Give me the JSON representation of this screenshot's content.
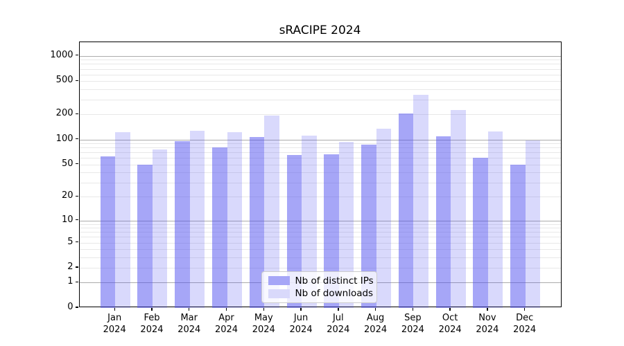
{
  "title": "sRACIPE 2024",
  "chart_data": {
    "type": "bar",
    "title": "sRACIPE 2024",
    "xlabel": "",
    "ylabel": "",
    "categories": [
      "Jan 2024",
      "Feb 2024",
      "Mar 2024",
      "Apr 2024",
      "May 2024",
      "Jun 2024",
      "Jul 2024",
      "Aug 2024",
      "Sep 2024",
      "Oct 2024",
      "Nov 2024",
      "Dec 2024"
    ],
    "series": [
      {
        "name": "Nb of distinct IPs",
        "color": "#a6a6f7",
        "bar_rgba": "rgba(77,77,240,0.50)",
        "values": [
          63,
          50,
          95,
          81,
          107,
          65,
          66,
          87,
          205,
          110,
          60,
          50
        ]
      },
      {
        "name": "Nb of downloads",
        "color": "#d9d9fb",
        "bar_rgba": "rgba(77,77,240,0.21)",
        "values": [
          122,
          76,
          128,
          122,
          195,
          112,
          94,
          135,
          345,
          228,
          125,
          97
        ]
      }
    ],
    "y_axis": {
      "scale": "log1p",
      "tick_values": [
        0,
        1,
        2,
        5,
        10,
        20,
        50,
        100,
        200,
        500,
        1000
      ],
      "major_grid_values": [
        1,
        10,
        100,
        1000
      ],
      "ylim": [
        0,
        1450
      ],
      "grid": true
    },
    "legend": {
      "position": "lower center",
      "entries": [
        "Nb of distinct IPs",
        "Nb of downloads"
      ]
    }
  },
  "colors": {
    "background": "#ffffff",
    "spine": "#000000",
    "major_grid": "#ababab",
    "minor_grid": "#e8e8e8",
    "text": "#000000",
    "series_dark": "#a6a6f7",
    "series_light": "#d9d9fb"
  }
}
